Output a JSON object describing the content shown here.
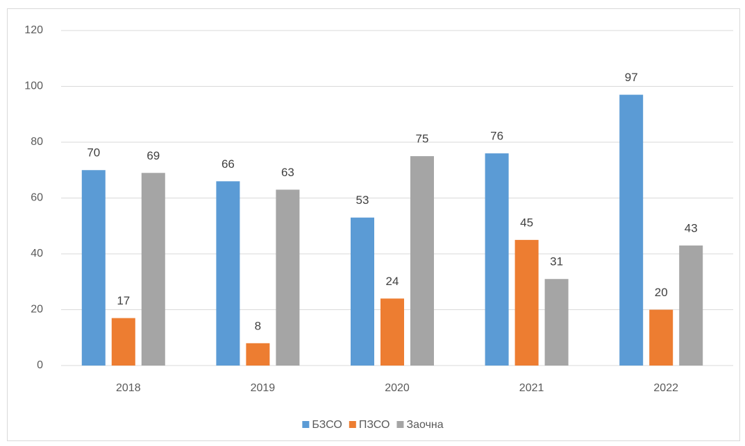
{
  "chart_data": {
    "type": "bar",
    "categories": [
      "2018",
      "2019",
      "2020",
      "2021",
      "2022"
    ],
    "series": [
      {
        "name": "БЗСО",
        "color": "#5b9bd5",
        "values": [
          70,
          66,
          53,
          76,
          97
        ]
      },
      {
        "name": "ПЗСО",
        "color": "#ed7d31",
        "values": [
          17,
          8,
          24,
          45,
          20
        ]
      },
      {
        "name": "Заочна",
        "color": "#a5a5a5",
        "values": [
          69,
          63,
          75,
          31,
          43
        ]
      }
    ],
    "ylim": [
      0,
      120
    ],
    "yticks": [
      0,
      20,
      40,
      60,
      80,
      100,
      120
    ],
    "grid": true,
    "legend": "bottom"
  }
}
